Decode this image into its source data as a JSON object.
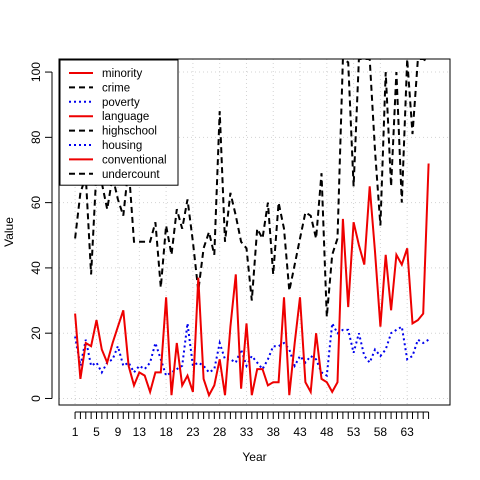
{
  "chart_data": {
    "type": "line",
    "title": "",
    "xlabel": "Year",
    "ylabel": "Value",
    "xlim": [
      -2,
      71
    ],
    "ylim": [
      -2,
      104
    ],
    "x_ticks": [
      1,
      5,
      9,
      13,
      18,
      23,
      28,
      33,
      38,
      43,
      48,
      53,
      58,
      63
    ],
    "x_minor_ticks": [
      1,
      2,
      3,
      4,
      5,
      6,
      7,
      8,
      9,
      10,
      11,
      12,
      13,
      14,
      15,
      16,
      17,
      18,
      19,
      20,
      21,
      22,
      23,
      24,
      25,
      26,
      27,
      28,
      29,
      30,
      31,
      32,
      33,
      34,
      35,
      36,
      37,
      38,
      39,
      40,
      41,
      42,
      43,
      44,
      45,
      46,
      47,
      48,
      49,
      50,
      51,
      52,
      53,
      54,
      55,
      56,
      57,
      58,
      59,
      60,
      61,
      62,
      63,
      64,
      65,
      66,
      67
    ],
    "y_ticks": [
      0,
      20,
      40,
      60,
      80,
      100
    ],
    "grid": true,
    "legend_position": "top-left",
    "legend": [
      {
        "name": "minority",
        "color": "#ee0000",
        "dash": "solid"
      },
      {
        "name": "crime",
        "color": "#000000",
        "dash": "dashed"
      },
      {
        "name": "poverty",
        "color": "#0000ee",
        "dash": "dotted"
      },
      {
        "name": "language",
        "color": "#ee0000",
        "dash": "solid"
      },
      {
        "name": "highschool",
        "color": "#000000",
        "dash": "dashed"
      },
      {
        "name": "housing",
        "color": "#0000ee",
        "dash": "dotted"
      },
      {
        "name": "conventional",
        "color": "#ee0000",
        "dash": "solid"
      },
      {
        "name": "undercount",
        "color": "#000000",
        "dash": "dashed"
      }
    ],
    "series": [
      {
        "name": "crime",
        "color": "#000000",
        "dash": "dashed",
        "x": [
          1,
          2,
          3,
          4,
          5,
          6,
          7,
          8,
          9,
          10,
          11,
          12,
          13,
          14,
          15,
          16,
          17,
          18,
          19,
          20,
          21,
          22,
          23,
          24,
          25,
          26,
          27,
          28,
          29,
          30,
          31,
          32,
          33,
          34,
          35,
          36,
          37,
          38,
          39,
          40,
          41,
          42,
          43,
          44,
          45,
          46,
          47,
          48,
          49,
          50,
          51,
          52,
          53,
          54,
          55,
          56,
          57,
          58,
          59,
          60,
          61,
          62,
          63,
          64,
          65,
          66,
          67
        ],
        "values": [
          49,
          63,
          68,
          38,
          70,
          66,
          58,
          68,
          61,
          56,
          71,
          48,
          48,
          48,
          48,
          54,
          34,
          53,
          44,
          58,
          52,
          61,
          48,
          33,
          46,
          51,
          44,
          88,
          48,
          63,
          56,
          48,
          46,
          30,
          52,
          49,
          60,
          38,
          60,
          52,
          33,
          41,
          49,
          57,
          56,
          49,
          69,
          25,
          44,
          49,
          104,
          103,
          65,
          104,
          104,
          104,
          76,
          53,
          100,
          65,
          100,
          60,
          104,
          81,
          104,
          104,
          103
        ]
      },
      {
        "name": "poverty",
        "color": "#0000ee",
        "dash": "dotted",
        "x": [
          1,
          2,
          3,
          4,
          5,
          6,
          7,
          8,
          9,
          10,
          11,
          12,
          13,
          14,
          15,
          16,
          17,
          18,
          19,
          20,
          21,
          22,
          23,
          24,
          25,
          26,
          27,
          28,
          29,
          30,
          31,
          32,
          33,
          34,
          35,
          36,
          37,
          38,
          39,
          40,
          41,
          42,
          43,
          44,
          45,
          46,
          47,
          48,
          49,
          50,
          51,
          52,
          53,
          54,
          55,
          56,
          57,
          58,
          59,
          60,
          61,
          62,
          63,
          64,
          65,
          66,
          67
        ],
        "values": [
          19,
          10,
          18,
          10,
          11,
          8,
          11,
          12,
          16,
          10,
          11,
          8,
          10,
          9,
          11,
          17,
          12,
          7,
          8,
          9,
          10,
          23,
          10,
          11,
          10,
          8,
          9,
          17,
          12,
          12,
          11,
          15,
          10,
          13,
          11,
          9,
          12,
          16,
          16,
          17,
          15,
          10,
          13,
          11,
          13,
          12,
          8,
          7,
          23,
          20,
          21,
          21,
          14,
          20,
          13,
          11,
          15,
          13,
          15,
          20,
          21,
          22,
          12,
          13,
          18,
          17,
          18
        ]
      },
      {
        "name": "minority",
        "color": "#ee0000",
        "dash": "solid",
        "x": [
          1,
          2,
          3,
          4,
          5,
          6,
          7,
          8,
          9,
          10,
          11,
          12,
          13,
          14,
          15,
          16,
          17,
          18,
          19,
          20,
          21,
          22,
          23,
          24,
          25,
          26,
          27,
          28,
          29,
          30,
          31,
          32,
          33,
          34,
          35,
          36,
          37,
          38,
          39,
          40,
          41,
          42,
          43,
          44,
          45,
          46,
          47,
          48,
          49,
          50,
          51,
          52,
          53,
          54,
          55,
          56,
          57,
          58,
          59,
          60,
          61,
          62,
          63,
          64,
          65,
          66,
          67
        ],
        "values": [
          26,
          6,
          17,
          16,
          24,
          15,
          11,
          17,
          22,
          27,
          10,
          4,
          8,
          7,
          2,
          8,
          8,
          31,
          1,
          17,
          4,
          7,
          2,
          37,
          6,
          1,
          4,
          12,
          1,
          22,
          38,
          3,
          23,
          1,
          9,
          9,
          4,
          5,
          5,
          31,
          1,
          17,
          31,
          5,
          2,
          20,
          6,
          5,
          2,
          5,
          55,
          28,
          54,
          47,
          41,
          65,
          45,
          22,
          44,
          27,
          44,
          41,
          46,
          23,
          24,
          26,
          72
        ]
      }
    ]
  }
}
